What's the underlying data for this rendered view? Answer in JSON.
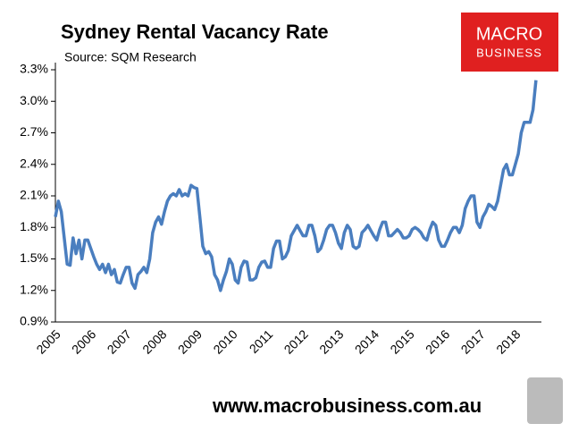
{
  "chart_data": {
    "type": "line",
    "title": "Sydney Rental Vacancy Rate",
    "subtitle": "Source: SQM Research",
    "categories": [
      "2005",
      null,
      null,
      null,
      null,
      null,
      null,
      null,
      null,
      null,
      null,
      null,
      "2006",
      null,
      null,
      null,
      null,
      null,
      null,
      null,
      null,
      null,
      null,
      null,
      "2007",
      null,
      null,
      null,
      null,
      null,
      null,
      null,
      null,
      null,
      null,
      null,
      "2008",
      null,
      null,
      null,
      null,
      null,
      null,
      null,
      null,
      null,
      null,
      null,
      "2009",
      null,
      null,
      null,
      null,
      null,
      null,
      null,
      null,
      null,
      null,
      null,
      "2010",
      null,
      null,
      null,
      null,
      null,
      null,
      null,
      null,
      null,
      null,
      null,
      "2011",
      null,
      null,
      null,
      null,
      null,
      null,
      null,
      null,
      null,
      null,
      null,
      "2012",
      null,
      null,
      null,
      null,
      null,
      null,
      null,
      null,
      null,
      null,
      null,
      "2013",
      null,
      null,
      null,
      null,
      null,
      null,
      null,
      null,
      null,
      null,
      null,
      "2014",
      null,
      null,
      null,
      null,
      null,
      null,
      null,
      null,
      null,
      null,
      null,
      "2015",
      null,
      null,
      null,
      null,
      null,
      null,
      null,
      null,
      null,
      null,
      null,
      "2016",
      null,
      null,
      null,
      null,
      null,
      null,
      null,
      null,
      null,
      null,
      null,
      "2017",
      null,
      null,
      null,
      null,
      null,
      null,
      null,
      null,
      null,
      null,
      null,
      "2018",
      null,
      null,
      null,
      null,
      null,
      null,
      null
    ],
    "values": [
      1.9,
      2.05,
      1.95,
      1.7,
      1.45,
      1.44,
      1.7,
      1.55,
      1.68,
      1.5,
      1.68,
      1.68,
      1.6,
      1.52,
      1.45,
      1.4,
      1.45,
      1.37,
      1.45,
      1.35,
      1.4,
      1.28,
      1.27,
      1.35,
      1.42,
      1.42,
      1.27,
      1.22,
      1.35,
      1.38,
      1.42,
      1.37,
      1.5,
      1.75,
      1.85,
      1.9,
      1.83,
      1.95,
      2.05,
      2.1,
      2.12,
      2.1,
      2.16,
      2.1,
      2.12,
      2.1,
      2.2,
      2.18,
      2.17,
      1.9,
      1.62,
      1.55,
      1.57,
      1.52,
      1.35,
      1.3,
      1.2,
      1.3,
      1.38,
      1.5,
      1.45,
      1.3,
      1.27,
      1.42,
      1.48,
      1.47,
      1.3,
      1.3,
      1.32,
      1.42,
      1.47,
      1.48,
      1.42,
      1.42,
      1.6,
      1.67,
      1.67,
      1.5,
      1.52,
      1.58,
      1.72,
      1.77,
      1.82,
      1.77,
      1.72,
      1.72,
      1.82,
      1.82,
      1.72,
      1.57,
      1.6,
      1.68,
      1.78,
      1.82,
      1.82,
      1.75,
      1.65,
      1.6,
      1.75,
      1.82,
      1.78,
      1.62,
      1.6,
      1.62,
      1.75,
      1.78,
      1.82,
      1.77,
      1.72,
      1.68,
      1.78,
      1.85,
      1.85,
      1.72,
      1.72,
      1.75,
      1.78,
      1.75,
      1.7,
      1.7,
      1.72,
      1.78,
      1.8,
      1.78,
      1.75,
      1.7,
      1.68,
      1.78,
      1.85,
      1.82,
      1.68,
      1.62,
      1.62,
      1.68,
      1.75,
      1.8,
      1.8,
      1.75,
      1.82,
      1.98,
      2.05,
      2.1,
      2.1,
      1.85,
      1.8,
      1.9,
      1.95,
      2.02,
      2.0,
      1.97,
      2.05,
      2.2,
      2.35,
      2.4,
      2.3,
      2.3,
      2.4,
      2.5,
      2.7,
      2.8,
      2.8,
      2.8,
      2.92,
      3.2
    ],
    "color": "#4a7ebf",
    "ylim": [
      0.9,
      3.3
    ],
    "yticks": [
      {
        "value": 0.9,
        "label": "0.9%"
      },
      {
        "value": 1.2,
        "label": "1.2%"
      },
      {
        "value": 1.5,
        "label": "1.5%"
      },
      {
        "value": 1.8,
        "label": "1.8%"
      },
      {
        "value": 2.1,
        "label": "2.1%"
      },
      {
        "value": 2.4,
        "label": "2.4%"
      },
      {
        "value": 2.7,
        "label": "2.7%"
      },
      {
        "value": 3.0,
        "label": "3.0%"
      },
      {
        "value": 3.3,
        "label": "3.3%"
      }
    ]
  },
  "logo": {
    "line1": "MACRO",
    "line2": "BUSINESS"
  },
  "footer": "www.macrobusiness.com.au"
}
